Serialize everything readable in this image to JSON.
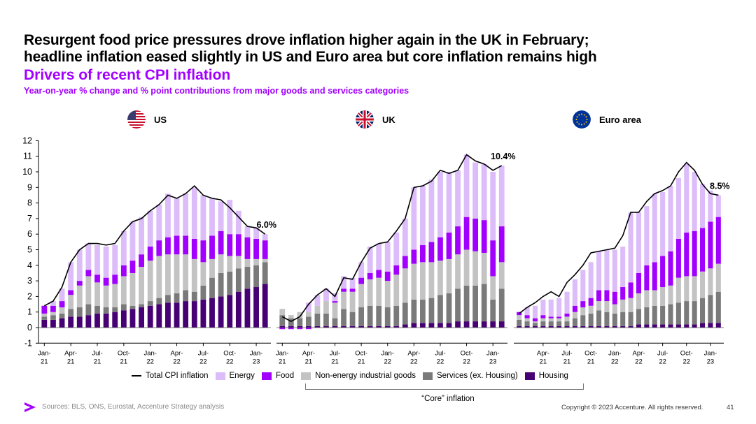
{
  "header": {
    "headline_line1": "Resurgent food price pressures drove inflation higher again in the UK in February;",
    "headline_line2": "headline inflation eased slightly in US and Euro area but core inflation remains high",
    "subtitle": "Drivers of recent CPI inflation",
    "units": "Year-on-year % change and % point contributions from major goods and services categories"
  },
  "colors": {
    "energy": "#dcbcf9",
    "food": "#a100ff",
    "non_energy_goods": "#c3c3c3",
    "services": "#7a7a7a",
    "housing": "#460073",
    "total_line": "#000000",
    "accent": "#a100ff"
  },
  "legend": {
    "total": "Total CPI inflation",
    "energy": "Energy",
    "food": "Food",
    "non_energy": "Non-energy industrial goods",
    "services": "Services (ex. Housing)",
    "housing": "Housing",
    "core_label": "“Core” inflation"
  },
  "panels": {
    "us": {
      "name": "US",
      "flag_icon": "us-flag-icon"
    },
    "uk": {
      "name": "UK",
      "flag_icon": "uk-flag-icon"
    },
    "ea": {
      "name": "Euro area",
      "flag_icon": "eu-flag-icon"
    }
  },
  "footer": {
    "source": "Sources: BLS, ONS, Eurostat, Accenture Strategy analysis",
    "copyright": "Copyright © 2023 Accenture. All rights reserved.",
    "page_number": "41"
  },
  "chart_data": [
    {
      "type": "bar",
      "panel": "US",
      "stacked": true,
      "ylim": [
        -1,
        12
      ],
      "yticks": [
        "-1",
        "0",
        "1",
        "2",
        "3",
        "4",
        "5",
        "6",
        "7",
        "8",
        "9",
        "10",
        "11",
        "12"
      ],
      "x": [
        "Jan-21",
        "Feb-21",
        "Mar-21",
        "Apr-21",
        "May-21",
        "Jun-21",
        "Jul-21",
        "Aug-21",
        "Sep-21",
        "Oct-21",
        "Nov-21",
        "Dec-21",
        "Jan-22",
        "Feb-22",
        "Mar-22",
        "Apr-22",
        "May-22",
        "Jun-22",
        "Jul-22",
        "Aug-22",
        "Sep-22",
        "Oct-22",
        "Nov-22",
        "Dec-22",
        "Jan-23",
        "Feb-23"
      ],
      "xtick_labels": [
        {
          "index": 0,
          "line1": "Jan-",
          "line2": "21"
        },
        {
          "index": 3,
          "line1": "Apr-",
          "line2": "21"
        },
        {
          "index": 6,
          "line1": "Jul-",
          "line2": "21"
        },
        {
          "index": 9,
          "line1": "Oct-",
          "line2": "21"
        },
        {
          "index": 12,
          "line1": "Jan-",
          "line2": "22"
        },
        {
          "index": 15,
          "line1": "Apr-",
          "line2": "22"
        },
        {
          "index": 18,
          "line1": "Jul-",
          "line2": "22"
        },
        {
          "index": 21,
          "line1": "Oct-",
          "line2": "22"
        },
        {
          "index": 24,
          "line1": "Jan-",
          "line2": "23"
        }
      ],
      "series": [
        {
          "name": "Housing",
          "values": [
            0.5,
            0.5,
            0.6,
            0.7,
            0.7,
            0.8,
            0.9,
            0.9,
            1.0,
            1.1,
            1.2,
            1.3,
            1.4,
            1.5,
            1.6,
            1.6,
            1.7,
            1.7,
            1.8,
            1.9,
            2.0,
            2.1,
            2.3,
            2.5,
            2.6,
            2.8
          ]
        },
        {
          "name": "Services (ex. Housing)",
          "values": [
            0.2,
            0.3,
            0.3,
            0.5,
            0.6,
            0.7,
            0.5,
            0.4,
            0.3,
            0.4,
            0.2,
            0.2,
            0.3,
            0.4,
            0.5,
            0.6,
            0.7,
            0.6,
            0.9,
            1.3,
            1.5,
            1.5,
            1.5,
            1.4,
            1.4,
            1.4
          ]
        },
        {
          "name": "Non-energy industrial goods",
          "values": [
            0.2,
            0.2,
            0.4,
            0.9,
            1.4,
            1.8,
            1.5,
            1.4,
            1.5,
            1.8,
            2.1,
            2.4,
            2.6,
            2.7,
            2.6,
            2.5,
            2.3,
            2.1,
            1.5,
            1.2,
            1.2,
            1.0,
            0.8,
            0.5,
            0.4,
            0.2
          ]
        },
        {
          "name": "Food",
          "values": [
            0.5,
            0.4,
            0.4,
            0.3,
            0.3,
            0.4,
            0.5,
            0.5,
            0.6,
            0.7,
            0.8,
            0.8,
            0.9,
            1.0,
            1.1,
            1.2,
            1.2,
            1.3,
            1.4,
            1.5,
            1.5,
            1.4,
            1.4,
            1.4,
            1.3,
            1.2
          ]
        },
        {
          "name": "Energy",
          "values": [
            0.0,
            0.3,
            0.8,
            1.8,
            2.0,
            1.7,
            1.9,
            2.0,
            1.9,
            2.2,
            2.5,
            2.4,
            2.3,
            2.3,
            2.8,
            2.4,
            2.7,
            3.3,
            2.9,
            2.4,
            1.9,
            2.2,
            1.5,
            0.7,
            0.7,
            0.4
          ]
        }
      ],
      "total": [
        1.4,
        1.7,
        2.6,
        4.2,
        5.0,
        5.4,
        5.4,
        5.3,
        5.4,
        6.2,
        6.8,
        7.0,
        7.5,
        7.9,
        8.5,
        8.3,
        8.6,
        9.1,
        8.5,
        8.3,
        8.2,
        7.7,
        7.1,
        6.5,
        6.4,
        6.0
      ],
      "annotation": "6.0%"
    },
    {
      "type": "bar",
      "panel": "UK",
      "stacked": true,
      "ylim": [
        -1,
        12
      ],
      "x": [
        "Jan-21",
        "Feb-21",
        "Mar-21",
        "Apr-21",
        "May-21",
        "Jun-21",
        "Jul-21",
        "Aug-21",
        "Sep-21",
        "Oct-21",
        "Nov-21",
        "Dec-21",
        "Jan-22",
        "Feb-22",
        "Mar-22",
        "Apr-22",
        "May-22",
        "Jun-22",
        "Jul-22",
        "Aug-22",
        "Sep-22",
        "Oct-22",
        "Nov-22",
        "Dec-22",
        "Jan-23",
        "Feb-23"
      ],
      "xtick_labels": [
        {
          "index": 0,
          "line1": "Jan-",
          "line2": "21"
        },
        {
          "index": 3,
          "line1": "Apr-",
          "line2": "21"
        },
        {
          "index": 6,
          "line1": "Jul-",
          "line2": "21"
        },
        {
          "index": 9,
          "line1": "Oct-",
          "line2": "21"
        },
        {
          "index": 12,
          "line1": "Jan-",
          "line2": "22"
        },
        {
          "index": 15,
          "line1": "Apr-",
          "line2": "22"
        },
        {
          "index": 18,
          "line1": "Jul-",
          "line2": "22"
        },
        {
          "index": 21,
          "line1": "Oct-",
          "line2": "22"
        },
        {
          "index": 24,
          "line1": "Jan-",
          "line2": "23"
        }
      ],
      "series": [
        {
          "name": "Housing",
          "values": [
            0.1,
            0.1,
            0.1,
            0.1,
            0.1,
            0.1,
            0.1,
            0.1,
            0.1,
            0.1,
            0.1,
            0.1,
            0.1,
            0.1,
            0.2,
            0.3,
            0.3,
            0.3,
            0.3,
            0.3,
            0.4,
            0.4,
            0.4,
            0.4,
            0.4,
            0.4
          ]
        },
        {
          "name": "Services (ex. Housing)",
          "values": [
            0.7,
            0.5,
            0.5,
            0.6,
            0.8,
            0.8,
            0.5,
            1.1,
            0.9,
            1.2,
            1.3,
            1.3,
            1.2,
            1.3,
            1.4,
            1.5,
            1.5,
            1.6,
            1.8,
            1.9,
            2.1,
            2.3,
            2.3,
            2.4,
            1.4,
            2.1
          ]
        },
        {
          "name": "Non-energy industrial goods",
          "values": [
            0.4,
            0.2,
            0.4,
            0.3,
            0.5,
            0.8,
            1.0,
            1.1,
            1.3,
            1.5,
            1.7,
            1.8,
            1.7,
            2.0,
            2.2,
            2.3,
            2.4,
            2.3,
            2.2,
            2.2,
            2.2,
            2.3,
            2.2,
            2.0,
            1.5,
            1.7
          ]
        },
        {
          "name": "Food",
          "values": [
            -0.1,
            -0.1,
            -0.1,
            -0.1,
            0.0,
            0.0,
            0.1,
            0.2,
            0.2,
            0.4,
            0.4,
            0.5,
            0.6,
            0.6,
            0.8,
            0.9,
            1.1,
            1.3,
            1.5,
            1.7,
            1.8,
            2.1,
            2.1,
            2.1,
            2.3,
            2.3
          ]
        },
        {
          "name": "Energy",
          "values": [
            0.0,
            0.0,
            0.0,
            0.6,
            0.7,
            0.8,
            0.5,
            0.8,
            0.7,
            1.0,
            1.7,
            1.7,
            1.9,
            2.1,
            2.4,
            4.0,
            3.8,
            4.0,
            4.2,
            3.9,
            3.6,
            4.0,
            3.6,
            3.6,
            4.4,
            3.9
          ]
        }
      ],
      "total": [
        0.7,
        0.4,
        0.7,
        1.5,
        2.1,
        2.5,
        2.0,
        3.2,
        3.1,
        4.2,
        5.1,
        5.4,
        5.5,
        6.2,
        7.0,
        9.0,
        9.1,
        9.4,
        10.1,
        9.9,
        10.1,
        11.1,
        10.7,
        10.5,
        10.1,
        10.4
      ],
      "annotation": "10.4%"
    },
    {
      "type": "bar",
      "panel": "Euro area",
      "stacked": true,
      "ylim": [
        -1,
        12
      ],
      "x": [
        "Jan-21",
        "Feb-21",
        "Mar-21",
        "Apr-21",
        "May-21",
        "Jun-21",
        "Jul-21",
        "Aug-21",
        "Sep-21",
        "Oct-21",
        "Nov-21",
        "Dec-21",
        "Jan-22",
        "Feb-22",
        "Mar-22",
        "Apr-22",
        "May-22",
        "Jun-22",
        "Jul-22",
        "Aug-22",
        "Sep-22",
        "Oct-22",
        "Nov-22",
        "Dec-22",
        "Jan-23",
        "Feb-23"
      ],
      "xtick_labels": [
        {
          "index": 3,
          "line1": "Apr-",
          "line2": "21"
        },
        {
          "index": 6,
          "line1": "Jul-",
          "line2": "21"
        },
        {
          "index": 9,
          "line1": "Oct-",
          "line2": "21"
        },
        {
          "index": 12,
          "line1": "Jan-",
          "line2": "22"
        },
        {
          "index": 15,
          "line1": "Apr-",
          "line2": "22"
        },
        {
          "index": 18,
          "line1": "Jul-",
          "line2": "22"
        },
        {
          "index": 21,
          "line1": "Oct-",
          "line2": "22"
        },
        {
          "index": 24,
          "line1": "Jan-",
          "line2": "23"
        }
      ],
      "series": [
        {
          "name": "Housing",
          "values": [
            0.1,
            0.1,
            0.1,
            0.1,
            0.1,
            0.1,
            0.1,
            0.1,
            0.1,
            0.1,
            0.1,
            0.1,
            0.1,
            0.1,
            0.1,
            0.2,
            0.2,
            0.2,
            0.2,
            0.2,
            0.2,
            0.2,
            0.2,
            0.3,
            0.3,
            0.3
          ]
        },
        {
          "name": "Services (ex. Housing)",
          "values": [
            0.4,
            0.3,
            0.2,
            0.3,
            0.3,
            0.3,
            0.3,
            0.5,
            0.7,
            0.8,
            1.0,
            0.9,
            0.8,
            0.9,
            0.9,
            1.0,
            1.1,
            1.2,
            1.2,
            1.3,
            1.4,
            1.5,
            1.5,
            1.6,
            1.8,
            2.0
          ]
        },
        {
          "name": "Non-energy industrial goods",
          "values": [
            0.3,
            0.2,
            0.1,
            0.2,
            0.2,
            0.2,
            0.3,
            0.4,
            0.5,
            0.5,
            0.6,
            0.7,
            0.6,
            0.8,
            0.9,
            1.0,
            1.1,
            1.0,
            1.2,
            1.2,
            1.6,
            1.6,
            1.6,
            1.7,
            1.7,
            1.8
          ]
        },
        {
          "name": "Food",
          "values": [
            0.2,
            0.2,
            0.2,
            0.2,
            0.1,
            0.1,
            0.2,
            0.4,
            0.4,
            0.5,
            0.7,
            0.7,
            0.8,
            0.8,
            1.0,
            1.3,
            1.6,
            1.8,
            2.0,
            2.2,
            2.5,
            2.8,
            2.9,
            2.8,
            3.0,
            3.0
          ]
        },
        {
          "name": "Energy",
          "values": [
            0.0,
            0.5,
            0.8,
            1.0,
            1.1,
            1.2,
            1.4,
            1.7,
            2.0,
            2.3,
            2.5,
            2.6,
            2.7,
            2.6,
            4.5,
            3.9,
            3.8,
            4.4,
            4.1,
            4.2,
            3.9,
            4.4,
            3.8,
            2.8,
            2.0,
            1.4
          ]
        }
      ],
      "total": [
        0.9,
        1.3,
        1.6,
        2.0,
        2.3,
        2.0,
        2.9,
        3.4,
        4.0,
        4.8,
        4.9,
        5.0,
        5.1,
        5.9,
        7.4,
        7.4,
        8.1,
        8.6,
        8.8,
        9.1,
        10.0,
        10.6,
        10.1,
        9.2,
        8.6,
        8.5
      ],
      "annotation": "8.5%"
    }
  ]
}
